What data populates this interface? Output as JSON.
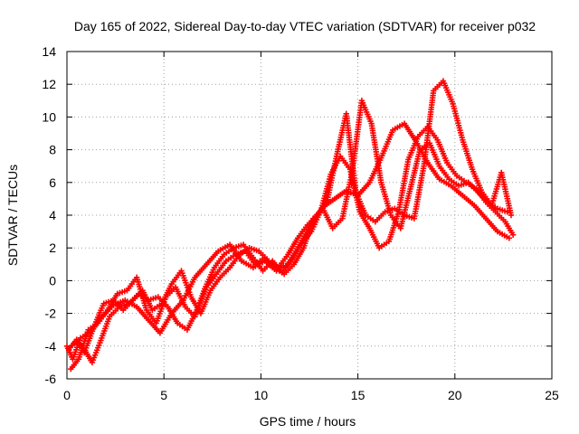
{
  "chart_data": {
    "type": "scatter",
    "title": "Day 165 of 2022, Sidereal Day-to-day VTEC variation (SDTVAR) for receiver p032",
    "xlabel": "GPS time / hours",
    "ylabel": "SDTVAR / TECUs",
    "xlim": [
      0,
      25
    ],
    "ylim": [
      -6,
      14
    ],
    "xticks": [
      0,
      5,
      10,
      15,
      20,
      25
    ],
    "yticks": [
      -6,
      -4,
      -2,
      0,
      2,
      4,
      6,
      8,
      10,
      12,
      14
    ],
    "grid": true,
    "marker": "+",
    "color": "#ff0000",
    "series": [
      {
        "x": [
          0.0,
          0.3,
          0.7,
          1.2,
          1.8,
          2.4,
          3.0,
          3.6,
          4.2,
          4.8,
          5.4,
          6.0,
          6.6,
          7.2,
          7.8,
          8.4,
          9.0,
          9.6,
          10.2,
          10.8,
          11.4,
          12.0,
          12.6,
          13.2,
          13.8,
          14.4,
          15.0,
          15.6,
          16.2,
          16.8,
          17.4,
          18.0,
          18.6,
          19.2,
          19.8,
          20.4,
          21.0,
          21.6,
          22.2,
          22.8
        ],
        "y": [
          -4.0,
          -4.8,
          -3.5,
          -3.2,
          -2.2,
          -1.5,
          -1.2,
          -1.6,
          -2.4,
          -3.2,
          -2.0,
          -1.2,
          0.2,
          1.0,
          1.8,
          2.2,
          1.2,
          0.8,
          1.2,
          0.6,
          1.0,
          2.2,
          3.5,
          4.5,
          5.0,
          5.5,
          5.2,
          6.0,
          7.5,
          9.2,
          9.6,
          8.5,
          7.2,
          6.2,
          5.8,
          5.2,
          4.6,
          3.8,
          3.0,
          2.6
        ]
      },
      {
        "x": [
          0.2,
          0.6,
          1.1,
          1.6,
          2.1,
          2.6,
          3.1,
          3.6,
          4.1,
          4.6,
          5.1,
          5.6,
          6.1,
          6.6,
          7.1,
          7.6,
          8.1,
          8.6,
          9.1,
          9.6,
          10.1,
          10.6,
          11.1,
          11.6,
          12.1,
          12.6,
          13.1,
          13.6,
          14.1,
          14.6,
          15.1,
          15.6,
          16.1,
          16.6,
          17.1,
          17.6,
          18.1,
          18.6,
          19.1,
          19.6,
          20.1,
          20.6,
          21.1,
          21.6,
          22.1,
          22.6,
          23.0
        ],
        "y": [
          -5.4,
          -4.8,
          -3.0,
          -2.6,
          -1.8,
          -0.8,
          -0.6,
          0.2,
          -1.8,
          -2.6,
          -1.0,
          -0.4,
          -1.6,
          -2.2,
          -0.5,
          0.8,
          1.6,
          2.0,
          2.2,
          1.4,
          0.6,
          1.2,
          0.5,
          1.3,
          2.3,
          3.0,
          4.3,
          6.5,
          7.6,
          6.8,
          4.2,
          3.2,
          2.0,
          2.4,
          4.2,
          7.4,
          8.8,
          9.4,
          8.6,
          7.2,
          6.4,
          6.0,
          5.6,
          4.8,
          4.2,
          3.6,
          2.8
        ]
      },
      {
        "x": [
          0.1,
          0.5,
          0.9,
          1.4,
          1.9,
          2.4,
          2.9,
          3.4,
          3.9,
          4.4,
          4.9,
          5.4,
          5.9,
          6.4,
          6.9,
          7.4,
          7.9,
          8.4,
          8.9,
          9.4,
          9.9,
          10.4,
          10.9,
          11.4,
          11.9,
          12.4,
          12.9,
          13.4,
          13.9,
          14.4,
          14.9,
          15.4,
          15.9,
          16.4,
          16.9,
          17.4,
          17.9,
          18.4,
          18.9,
          19.4,
          19.9,
          20.4,
          20.9,
          21.4,
          21.9,
          22.4,
          22.9
        ],
        "y": [
          -4.2,
          -3.6,
          -4.4,
          -2.8,
          -1.4,
          -1.2,
          -1.8,
          -1.2,
          -0.6,
          -1.8,
          -1.4,
          -0.2,
          0.6,
          -1.0,
          -2.0,
          -0.6,
          0.2,
          0.8,
          1.6,
          2.0,
          1.8,
          1.2,
          0.8,
          1.6,
          2.6,
          3.4,
          4.0,
          4.8,
          7.6,
          10.2,
          5.4,
          4.0,
          3.6,
          4.2,
          4.4,
          4.0,
          3.8,
          7.0,
          11.6,
          12.2,
          10.8,
          8.6,
          6.8,
          5.4,
          4.6,
          6.6,
          4.0
        ]
      },
      {
        "x": [
          0.4,
          0.8,
          1.3,
          1.7,
          2.2,
          2.7,
          3.2,
          3.7,
          4.2,
          4.7,
          5.2,
          5.7,
          6.2,
          6.7,
          7.2,
          7.7,
          8.2,
          8.7,
          9.2,
          9.7,
          10.2,
          10.7,
          11.2,
          11.7,
          12.2,
          12.7,
          13.2,
          13.7,
          14.2,
          14.7,
          15.2,
          15.7,
          16.2,
          16.7,
          17.2,
          17.7,
          18.2,
          18.7,
          19.2,
          19.7,
          20.2,
          20.7,
          21.2,
          21.7,
          22.2,
          22.7
        ],
        "y": [
          -3.8,
          -4.0,
          -5.0,
          -3.8,
          -2.2,
          -1.6,
          -1.4,
          -0.8,
          -1.2,
          -1.0,
          -1.6,
          -2.6,
          -3.0,
          -1.8,
          -0.4,
          0.4,
          1.2,
          1.6,
          1.8,
          1.0,
          1.4,
          0.8,
          0.4,
          1.0,
          2.0,
          3.8,
          4.4,
          3.2,
          3.8,
          6.6,
          11.0,
          9.6,
          6.0,
          4.0,
          3.2,
          5.6,
          8.0,
          8.4,
          7.0,
          6.2,
          5.8,
          6.0,
          5.4,
          4.8,
          4.4,
          4.2
        ]
      }
    ]
  }
}
